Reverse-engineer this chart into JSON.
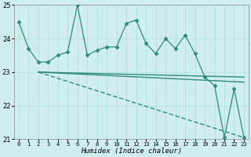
{
  "xlabel": "Humidex (Indice chaleur)",
  "x_values": [
    0,
    1,
    2,
    3,
    4,
    5,
    6,
    7,
    8,
    9,
    10,
    11,
    12,
    13,
    14,
    15,
    16,
    17,
    18,
    19,
    20,
    21,
    22,
    23
  ],
  "main_line": [
    24.5,
    23.7,
    23.3,
    23.3,
    23.5,
    23.6,
    25.0,
    23.5,
    23.65,
    23.75,
    23.75,
    24.45,
    24.55,
    23.85,
    23.55,
    24.0,
    23.7,
    24.1,
    23.55,
    22.85,
    22.6,
    21.05,
    22.5,
    21.05
  ],
  "trend_start_x": 2,
  "trend_start_y": 23.0,
  "trend1_end_x": 23,
  "trend1_end_y": 22.85,
  "trend2_end_x": 20,
  "trend2_end_y": 22.55,
  "trend3_end_x": 23,
  "trend3_end_y": 21.05,
  "ylim": [
    21,
    25
  ],
  "xlim": [
    -0.5,
    23.5
  ],
  "yticks": [
    21,
    22,
    23,
    24,
    25
  ],
  "xtick_labels": [
    "0",
    "1",
    "2",
    "3",
    "4",
    "5",
    "6",
    "7",
    "8",
    "9",
    "10",
    "11",
    "12",
    "13",
    "14",
    "15",
    "16",
    "17",
    "18",
    "19",
    "20",
    "21",
    "22",
    "23"
  ],
  "line_color": "#2E8B7A",
  "bg_color": "#D0EEEE",
  "grid_color": "#AADDDD",
  "grid_major_color": "#99CCCC"
}
